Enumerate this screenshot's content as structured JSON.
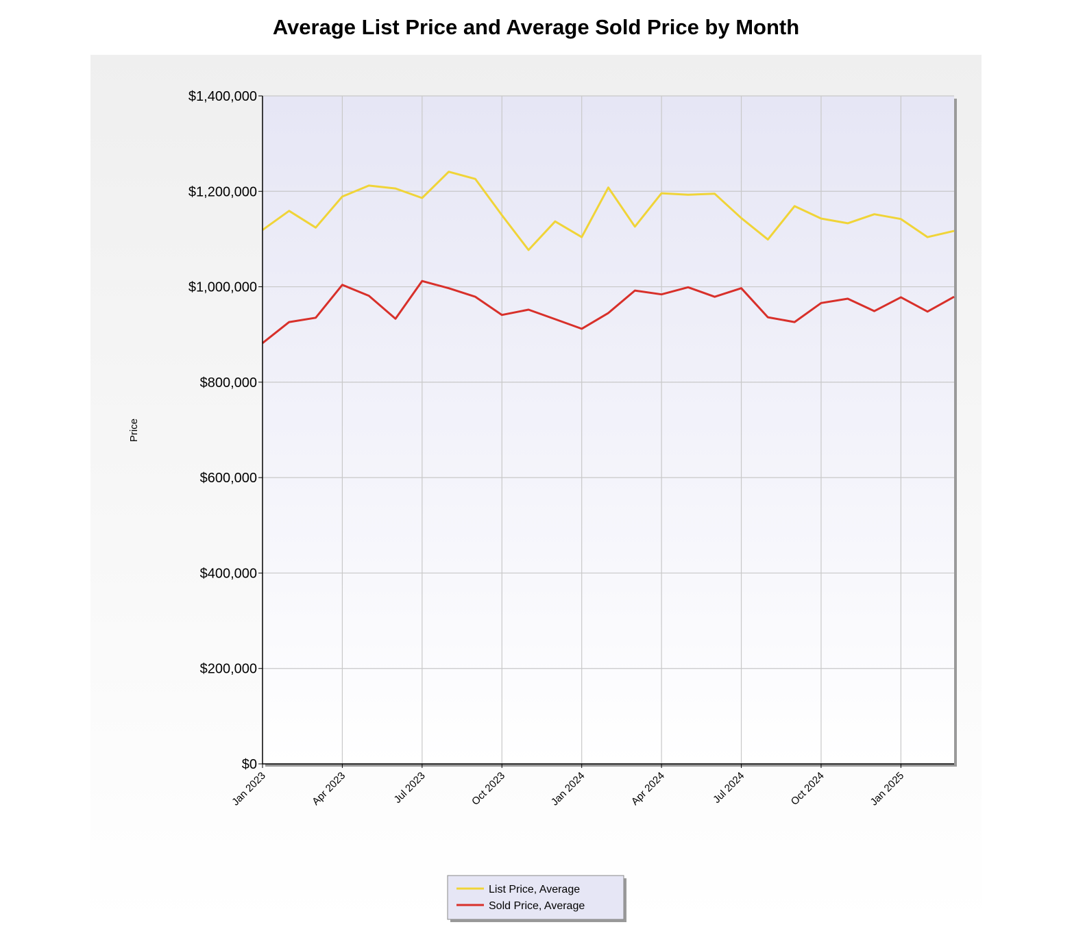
{
  "chart_data": {
    "type": "line",
    "title": "Average List Price and Average Sold Price by Month",
    "xlabel": "",
    "ylabel": "Price",
    "ylim": [
      0,
      1400000
    ],
    "yticks": [
      0,
      200000,
      400000,
      600000,
      800000,
      1000000,
      1200000,
      1400000
    ],
    "ytick_labels": [
      "$0",
      "$200,000",
      "$400,000",
      "$600,000",
      "$800,000",
      "$1,000,000",
      "$1,200,000",
      "$1,400,000"
    ],
    "x": [
      "Jan 2023",
      "Feb 2023",
      "Mar 2023",
      "Apr 2023",
      "May 2023",
      "Jun 2023",
      "Jul 2023",
      "Aug 2023",
      "Sep 2023",
      "Oct 2023",
      "Nov 2023",
      "Dec 2023",
      "Jan 2024",
      "Feb 2024",
      "Mar 2024",
      "Apr 2024",
      "May 2024",
      "Jun 2024",
      "Jul 2024",
      "Aug 2024",
      "Sep 2024",
      "Oct 2024",
      "Nov 2024",
      "Dec 2024",
      "Jan 2025",
      "Feb 2025",
      "Mar 2025"
    ],
    "xtick_labels": [
      {
        "index": 0,
        "label": "Jan 2023"
      },
      {
        "index": 3,
        "label": "Apr 2023"
      },
      {
        "index": 6,
        "label": "Jul 2023"
      },
      {
        "index": 9,
        "label": "Oct 2023"
      },
      {
        "index": 12,
        "label": "Jan 2024"
      },
      {
        "index": 15,
        "label": "Apr 2024"
      },
      {
        "index": 18,
        "label": "Jul 2024"
      },
      {
        "index": 21,
        "label": "Oct 2024"
      },
      {
        "index": 24,
        "label": "Jan 2025"
      }
    ],
    "grid": true,
    "legend_position": "bottom-center",
    "series": [
      {
        "name": "List Price, Average",
        "color": "#f0d438",
        "values": [
          1119000,
          1159000,
          1124000,
          1189000,
          1212000,
          1206000,
          1186000,
          1241000,
          1226000,
          1150000,
          1077000,
          1137000,
          1104000,
          1208000,
          1126000,
          1196000,
          1193000,
          1195000,
          1144000,
          1099000,
          1169000,
          1143000,
          1133000,
          1152000,
          1142000,
          1104000,
          1117000
        ]
      },
      {
        "name": "Sold Price, Average",
        "color": "#d8302a",
        "values": [
          882000,
          926000,
          935000,
          1004000,
          981000,
          933000,
          1012000,
          997000,
          979000,
          941000,
          952000,
          932000,
          912000,
          945000,
          992000,
          984000,
          999000,
          979000,
          997000,
          936000,
          926000,
          966000,
          975000,
          949000,
          978000,
          948000,
          979000
        ]
      }
    ]
  }
}
